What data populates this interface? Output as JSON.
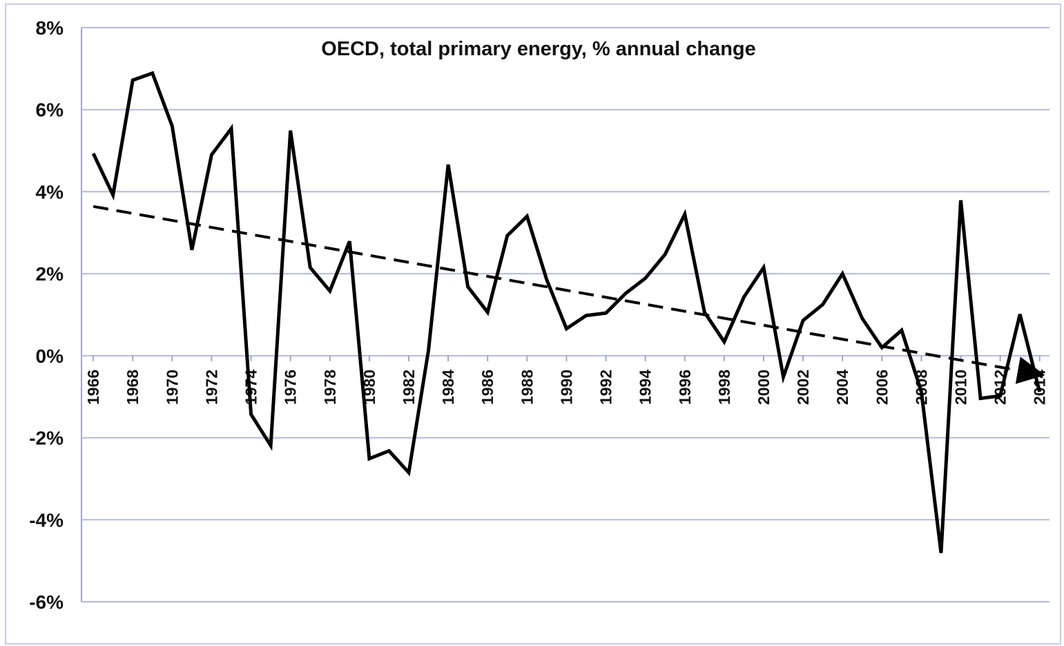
{
  "chart_data": {
    "type": "line",
    "title": "OECD, total primary energy, % annual change",
    "x": [
      1966,
      1967,
      1968,
      1969,
      1970,
      1971,
      1972,
      1973,
      1974,
      1975,
      1976,
      1977,
      1978,
      1979,
      1980,
      1981,
      1982,
      1983,
      1984,
      1985,
      1986,
      1987,
      1988,
      1989,
      1990,
      1991,
      1992,
      1993,
      1994,
      1995,
      1996,
      1997,
      1998,
      1999,
      2000,
      2001,
      2002,
      2003,
      2004,
      2005,
      2006,
      2007,
      2008,
      2009,
      2010,
      2011,
      2012,
      2013,
      2014
    ],
    "values": [
      4.93,
      3.92,
      6.72,
      6.89,
      5.6,
      2.58,
      4.9,
      5.54,
      -1.43,
      -2.19,
      5.49,
      2.15,
      1.58,
      2.79,
      -2.51,
      -2.32,
      -2.85,
      0.13,
      4.66,
      1.68,
      1.06,
      2.93,
      3.4,
      1.85,
      0.66,
      0.98,
      1.04,
      1.52,
      1.89,
      2.47,
      3.45,
      1.06,
      0.34,
      1.43,
      2.15,
      -0.52,
      0.86,
      1.25,
      2.0,
      0.91,
      0.2,
      0.62,
      -0.88,
      -4.81,
      3.79,
      -1.04,
      -0.98,
      1.01,
      -0.88
    ],
    "color": "#000000",
    "trend": {
      "x": [
        1966,
        2014
      ],
      "values": [
        3.64,
        -0.45
      ],
      "color": "#000000",
      "style": "dashed"
    },
    "xlim": [
      1965.4,
      2014.5
    ],
    "xticks": [
      1966,
      1968,
      1970,
      1972,
      1974,
      1976,
      1978,
      1980,
      1982,
      1984,
      1986,
      1988,
      1990,
      1992,
      1994,
      1996,
      1998,
      2000,
      2002,
      2004,
      2006,
      2008,
      2010,
      2012,
      2014
    ],
    "ylim": [
      -6,
      8
    ],
    "yticks": [
      {
        "value": -6,
        "label": "-6%"
      },
      {
        "value": -4,
        "label": "-4%"
      },
      {
        "value": -2,
        "label": "-2%"
      },
      {
        "value": 0,
        "label": "0%"
      },
      {
        "value": 2,
        "label": "2%"
      },
      {
        "value": 4,
        "label": "4%"
      },
      {
        "value": 6,
        "label": "6%"
      },
      {
        "value": 8,
        "label": "8%"
      }
    ],
    "grid": true
  }
}
